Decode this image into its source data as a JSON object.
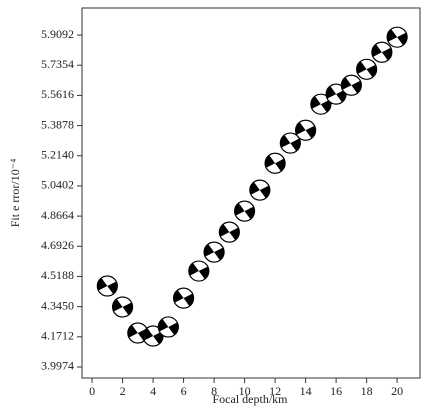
{
  "chart_data": {
    "type": "scatter",
    "xlabel": "Focal depth/km",
    "ylabel": "Fit e rror/10⁻⁴",
    "x": [
      1,
      2,
      3,
      4,
      5,
      6,
      7,
      8,
      9,
      10,
      11,
      12,
      13,
      14,
      15,
      16,
      17,
      18,
      19,
      20
    ],
    "values": [
      4.464,
      4.343,
      4.193,
      4.176,
      4.228,
      4.394,
      4.55,
      4.659,
      4.774,
      4.895,
      5.016,
      5.171,
      5.287,
      5.361,
      5.511,
      5.569,
      5.62,
      5.712,
      5.81,
      5.897
    ],
    "color": "#000000",
    "xlim": [
      -0.66,
      21.5
    ],
    "xticks": [
      0,
      2,
      4,
      6,
      8,
      10,
      12,
      14,
      16,
      18,
      20
    ],
    "ylim": [
      3.934,
      6.065
    ],
    "yticks": [
      3.9974,
      4.1712,
      {
        "value": 4.345,
        "label": "4.3450"
      },
      4.5188,
      4.6926,
      4.8664,
      5.0402,
      {
        "value": 5.214,
        "label": "5.2140"
      },
      5.3878,
      5.5616,
      5.7354,
      5.9092
    ],
    "grid": false
  }
}
